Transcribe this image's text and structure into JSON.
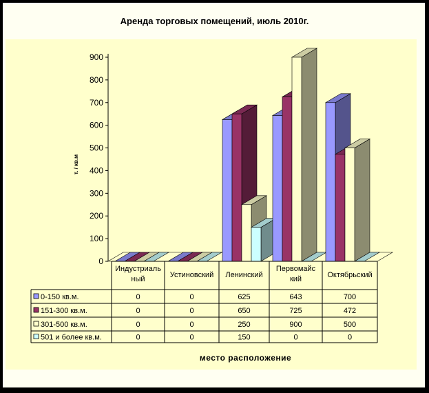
{
  "chart_data": {
    "type": "bar",
    "title": "Аренда торговых помещений, июль 2010г.",
    "xlabel": "место расположение",
    "ylabel": "т. / кв.м",
    "ylim": [
      0,
      900
    ],
    "y_ticks": [
      "0",
      "100",
      "200",
      "300",
      "400",
      "500",
      "600",
      "700",
      "800",
      "900"
    ],
    "grid": false,
    "legend": "table-below",
    "categories": [
      "Индустриаль ный",
      "Устиновский",
      "Ленинский",
      "Первомайс кий",
      "Октябрьский"
    ],
    "category_lines": [
      [
        "Индустриаль",
        "ный"
      ],
      [
        "Устиновский"
      ],
      [
        "Ленинский"
      ],
      [
        "Первомайс",
        "кий"
      ],
      [
        "Октябрьский"
      ]
    ],
    "series": [
      {
        "name": "0-150 кв.м.",
        "values": [
          0,
          0,
          625,
          643,
          700
        ],
        "color": "#9999ff"
      },
      {
        "name": "151-300 кв.м.",
        "values": [
          0,
          0,
          650,
          725,
          472
        ],
        "color": "#993366"
      },
      {
        "name": "301-500 кв.м.",
        "values": [
          0,
          0,
          250,
          900,
          500
        ],
        "color": "#ffffcc"
      },
      {
        "name": "501 и более кв.м.",
        "values": [
          0,
          0,
          150,
          0,
          0
        ],
        "color": "#ccffff"
      }
    ]
  }
}
